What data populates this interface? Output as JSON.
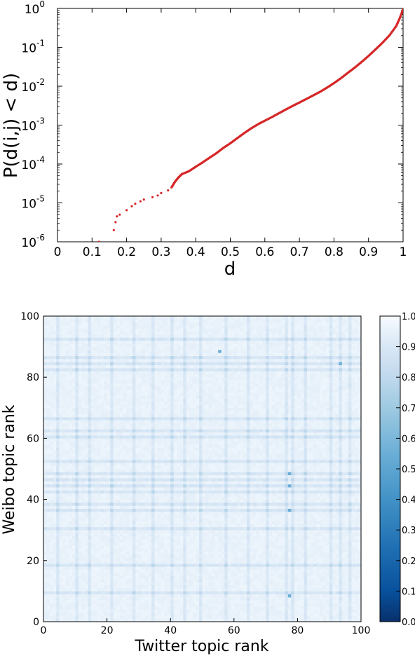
{
  "chart_data": [
    {
      "type": "scatter",
      "xlabel": "d",
      "ylabel": "P(d(i,j) < d)",
      "xlim": [
        0,
        1
      ],
      "ylim": [
        1e-06,
        1
      ],
      "yscale": "log",
      "grid": false,
      "marker_color": "#d62728",
      "x_ticks": [
        "0",
        "0.1",
        "0.2",
        "0.3",
        "0.4",
        "0.5",
        "0.6",
        "0.7",
        "0.8",
        "0.9",
        "1"
      ],
      "y_ticks": [
        {
          "base": "10",
          "exp": "-6",
          "value": 1e-06
        },
        {
          "base": "10",
          "exp": "-5",
          "value": 1e-05
        },
        {
          "base": "10",
          "exp": "-4",
          "value": 0.0001
        },
        {
          "base": "10",
          "exp": "-3",
          "value": 0.001
        },
        {
          "base": "10",
          "exp": "-2",
          "value": 0.01
        },
        {
          "base": "10",
          "exp": "-1",
          "value": 0.1
        },
        {
          "base": "10",
          "exp": "0",
          "value": 1
        }
      ],
      "points": [
        [
          0.12,
          1e-06
        ],
        [
          0.163,
          2e-06
        ],
        [
          0.168,
          3.2e-06
        ],
        [
          0.172,
          4.5e-06
        ],
        [
          0.18,
          5e-06
        ],
        [
          0.2,
          6.5e-06
        ],
        [
          0.215,
          8.2e-06
        ],
        [
          0.225,
          9.5e-06
        ],
        [
          0.24,
          1.1e-05
        ],
        [
          0.25,
          1.22e-05
        ],
        [
          0.275,
          1.4e-05
        ],
        [
          0.29,
          1.55e-05
        ],
        [
          0.3,
          1.8e-05
        ],
        [
          0.32,
          2.1e-05
        ],
        [
          0.33,
          2.5e-05
        ],
        [
          0.34,
          3.5e-05
        ],
        [
          0.35,
          4.5e-05
        ],
        [
          0.36,
          5.5e-05
        ],
        [
          0.38,
          6.5e-05
        ],
        [
          0.4,
          8.5e-05
        ],
        [
          0.42,
          0.00011
        ],
        [
          0.44,
          0.000145
        ],
        [
          0.46,
          0.00019
        ],
        [
          0.48,
          0.00026
        ],
        [
          0.5,
          0.00034
        ],
        [
          0.52,
          0.00046
        ],
        [
          0.54,
          0.00062
        ],
        [
          0.56,
          0.00082
        ],
        [
          0.58,
          0.00105
        ],
        [
          0.6,
          0.0013
        ],
        [
          0.62,
          0.0016
        ],
        [
          0.64,
          0.002
        ],
        [
          0.66,
          0.0025
        ],
        [
          0.68,
          0.0031
        ],
        [
          0.7,
          0.0038
        ],
        [
          0.72,
          0.0047
        ],
        [
          0.74,
          0.0058
        ],
        [
          0.76,
          0.0072
        ],
        [
          0.78,
          0.0092
        ],
        [
          0.8,
          0.012
        ],
        [
          0.82,
          0.016
        ],
        [
          0.84,
          0.022
        ],
        [
          0.86,
          0.03
        ],
        [
          0.88,
          0.042
        ],
        [
          0.9,
          0.06
        ],
        [
          0.92,
          0.088
        ],
        [
          0.94,
          0.13
        ],
        [
          0.96,
          0.2
        ],
        [
          0.98,
          0.35
        ],
        [
          0.99,
          0.55
        ],
        [
          1.0,
          0.95
        ]
      ]
    },
    {
      "type": "heatmap",
      "xlabel": "Twitter topic rank",
      "ylabel": "Weibo topic rank",
      "xlim": [
        0,
        100
      ],
      "ylim": [
        0,
        100
      ],
      "x_ticks": [
        "0",
        "20",
        "40",
        "60",
        "80",
        "100"
      ],
      "y_ticks": [
        "0",
        "20",
        "40",
        "60",
        "80",
        "100"
      ],
      "colormap": "Blues_r",
      "color_range": [
        0.0,
        1.0
      ],
      "colorbar_ticks": [
        "0.0",
        "0.1",
        "0.2",
        "0.3",
        "0.4",
        "0.5",
        "0.6",
        "0.7",
        "0.8",
        "0.9",
        "1.0"
      ],
      "darker_rows": [
        9,
        18,
        30,
        36,
        38,
        42,
        44,
        46,
        48,
        52,
        60,
        62,
        66,
        82,
        84,
        86,
        92
      ],
      "darker_columns": [
        4,
        10,
        14,
        21,
        28,
        34,
        40,
        44,
        49,
        57,
        64,
        70,
        76,
        78,
        82,
        90,
        93,
        96
      ],
      "min_value_cells": [
        [
          77,
          48
        ],
        [
          77,
          44
        ],
        [
          77,
          36
        ],
        [
          77,
          8
        ],
        [
          93,
          84
        ],
        [
          55,
          88
        ]
      ]
    }
  ]
}
